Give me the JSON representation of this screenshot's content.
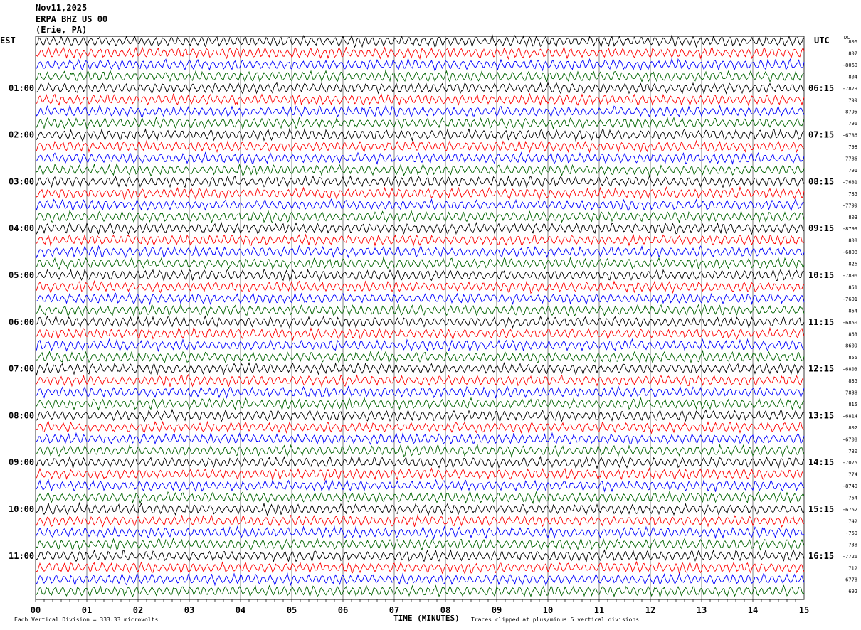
{
  "header": {
    "date": "Nov11,2025",
    "station": "ERPA BHZ US 00",
    "location": "(Erie, PA)"
  },
  "left_tz": "EST",
  "right_tz": "UTC",
  "dc_label": "DC",
  "footer": {
    "scale_note": "Each Vertical Division =  333.33 microvolts",
    "clip_note": "Traces clipped at plus/minus 5 vertical divisions"
  },
  "chart_data": {
    "type": "line",
    "title": "Nov11,2025 ERPA BHZ US 00 (Erie, PA)",
    "xlabel": "TIME (MINUTES)",
    "x_ticks": [
      "00",
      "01",
      "02",
      "03",
      "04",
      "05",
      "06",
      "07",
      "08",
      "09",
      "10",
      "11",
      "12",
      "13",
      "14",
      "15"
    ],
    "xlim": [
      0,
      15
    ],
    "trace_count": 48,
    "trace_colors": [
      "#000000",
      "#ff0000",
      "#0000ff",
      "#006400"
    ],
    "left_hour_labels": [
      {
        "row": 4,
        "text": "01:00"
      },
      {
        "row": 8,
        "text": "02:00"
      },
      {
        "row": 12,
        "text": "03:00"
      },
      {
        "row": 16,
        "text": "04:00"
      },
      {
        "row": 20,
        "text": "05:00"
      },
      {
        "row": 24,
        "text": "06:00"
      },
      {
        "row": 28,
        "text": "07:00"
      },
      {
        "row": 32,
        "text": "08:00"
      },
      {
        "row": 36,
        "text": "09:00"
      },
      {
        "row": 40,
        "text": "10:00"
      },
      {
        "row": 44,
        "text": "11:00"
      }
    ],
    "right_hour_labels": [
      {
        "row": 4,
        "text": "06:15"
      },
      {
        "row": 8,
        "text": "07:15"
      },
      {
        "row": 12,
        "text": "08:15"
      },
      {
        "row": 16,
        "text": "09:15"
      },
      {
        "row": 20,
        "text": "10:15"
      },
      {
        "row": 24,
        "text": "11:15"
      },
      {
        "row": 28,
        "text": "12:15"
      },
      {
        "row": 32,
        "text": "13:15"
      },
      {
        "row": 36,
        "text": "14:15"
      },
      {
        "row": 40,
        "text": "15:15"
      },
      {
        "row": 44,
        "text": "16:15"
      }
    ],
    "dc_offsets": [
      "806",
      "807",
      "-8060",
      "804",
      "-7879",
      "799",
      "-8795",
      "796",
      "-6786",
      "798",
      "-7786",
      "791",
      "-7681",
      "785",
      "-7799",
      "803",
      "-8799",
      "808",
      "-6808",
      "826",
      "-7896",
      "851",
      "-7601",
      "864",
      "-6850",
      "863",
      "-8609",
      "855",
      "-6803",
      "835",
      "-7838",
      "815",
      "-6814",
      "802",
      "-6708",
      "780",
      "-7075",
      "774",
      "-8740",
      "764",
      "-6752",
      "742",
      "-750",
      "738",
      "-7726",
      "712",
      "-6778",
      "692"
    ]
  }
}
